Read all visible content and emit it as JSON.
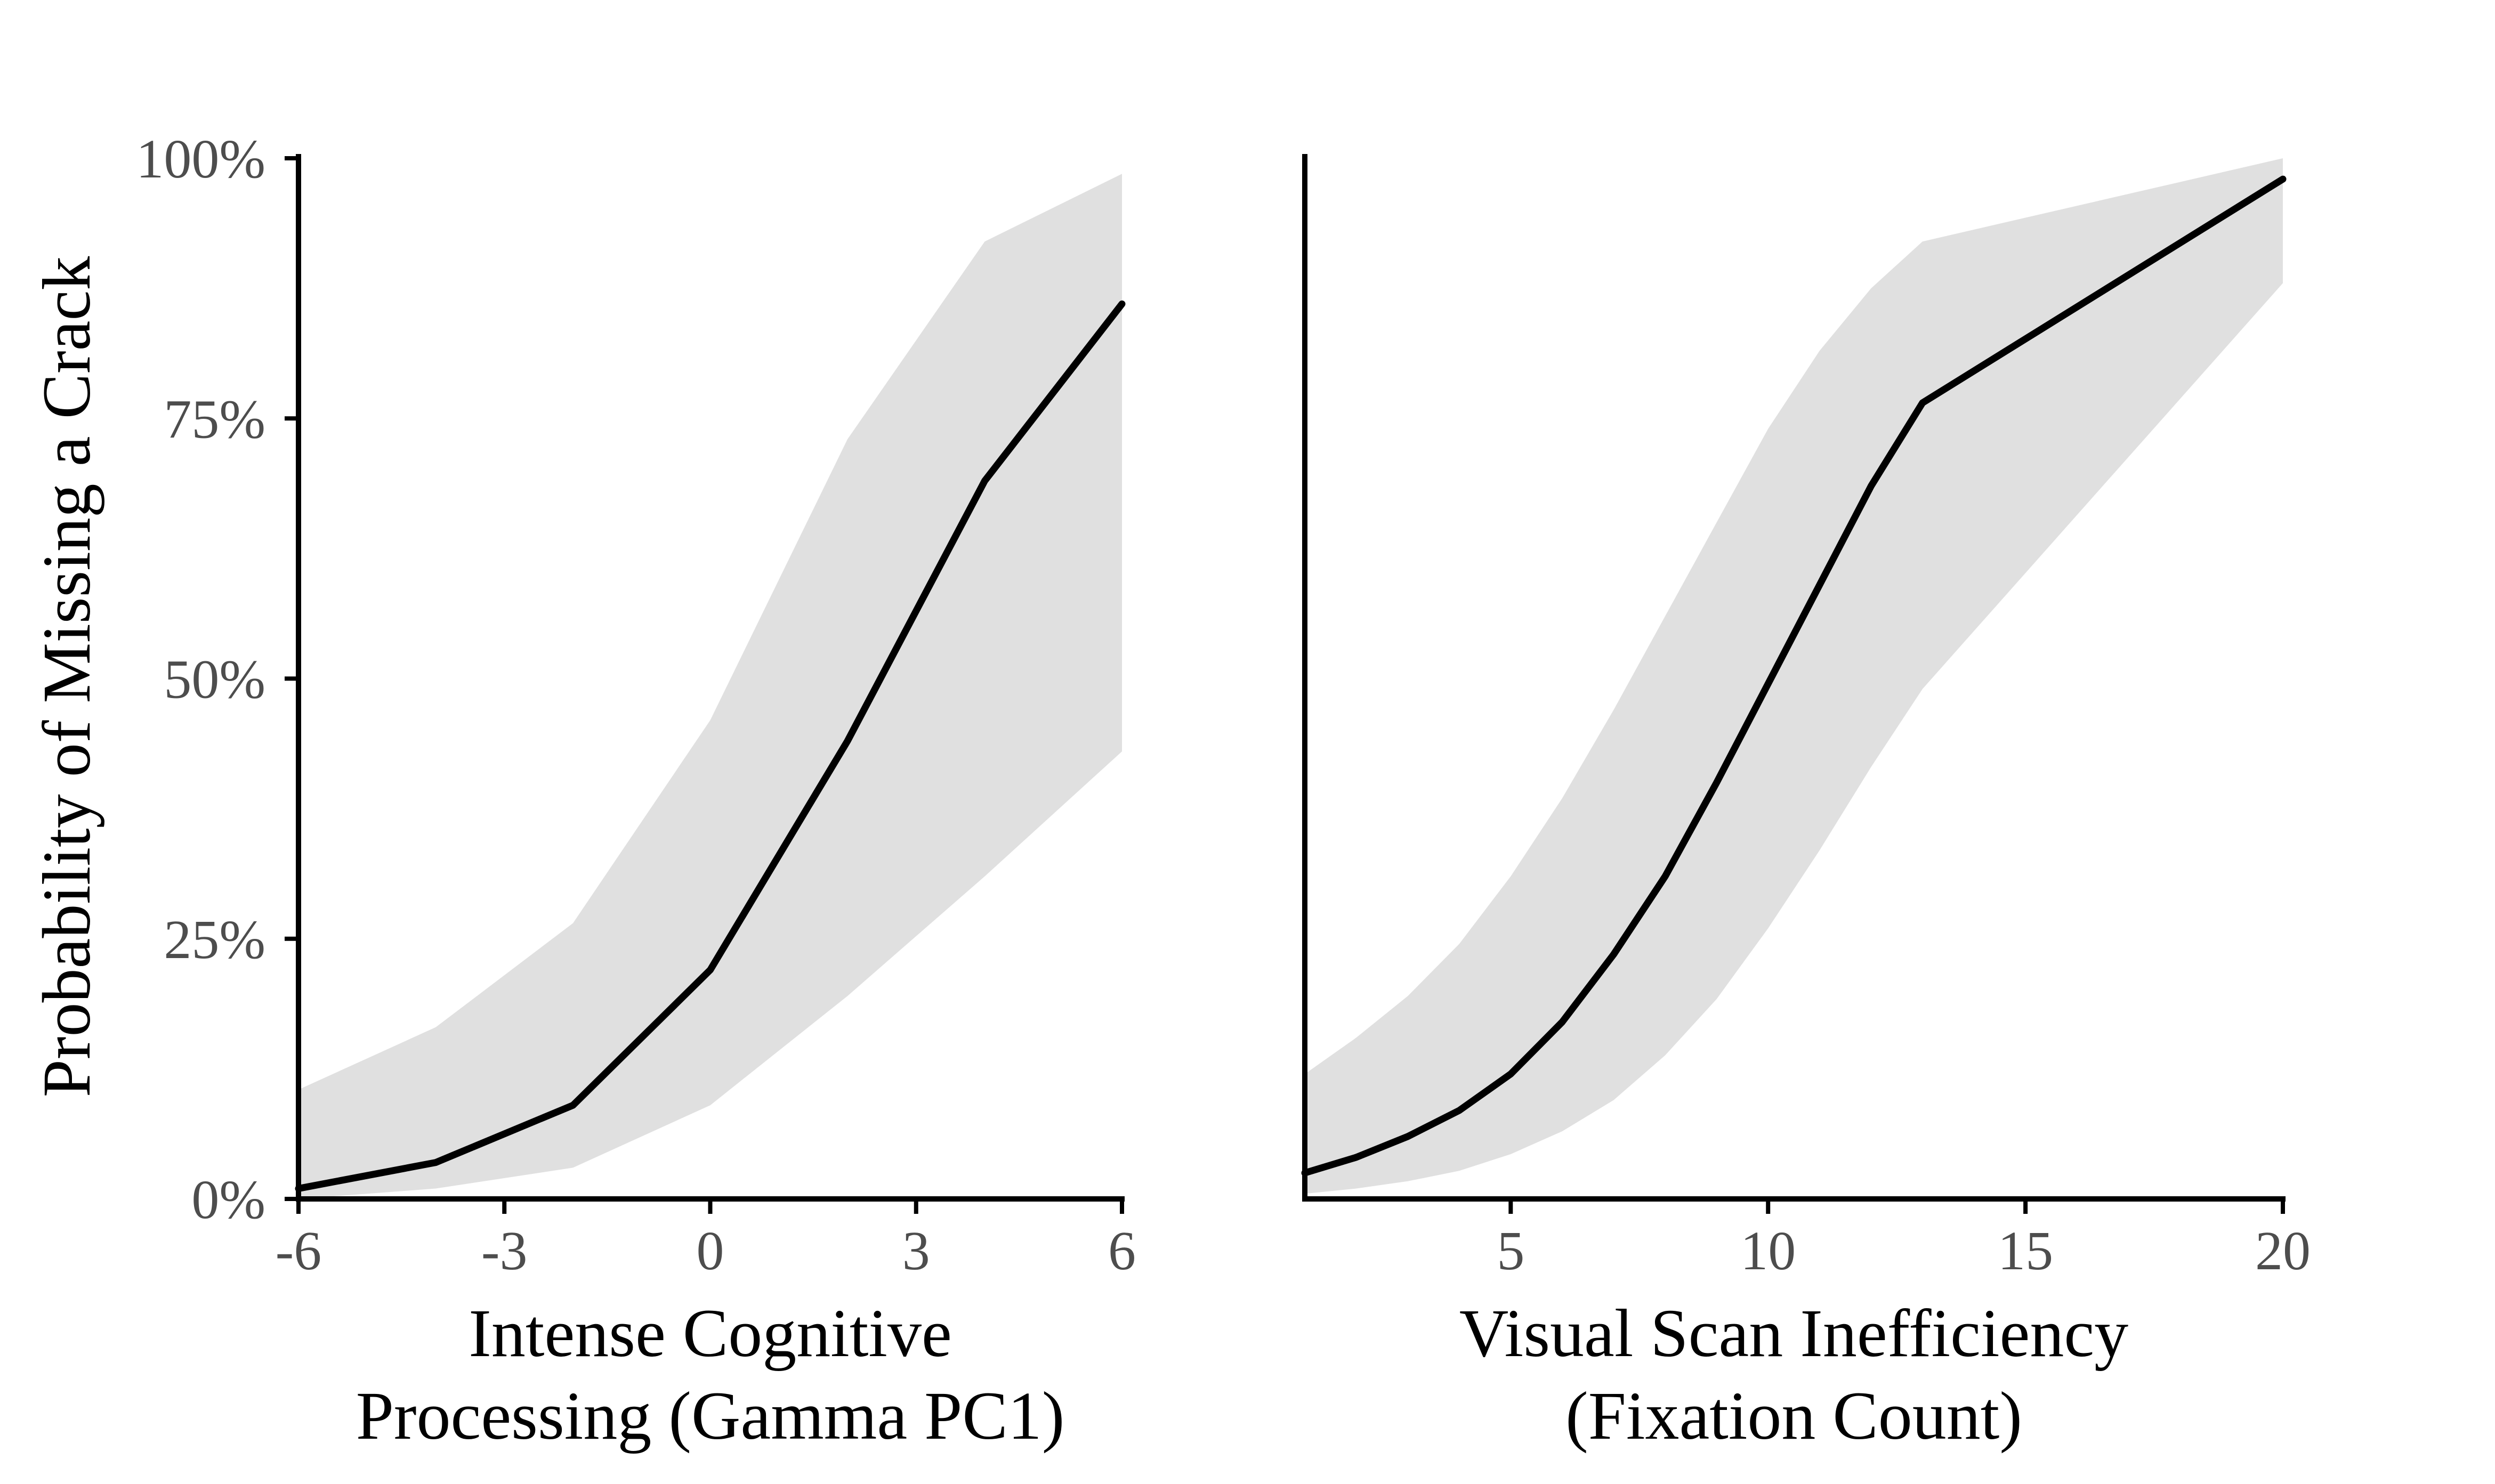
{
  "ylabel": "Probability of Missing a Crack",
  "colors": {
    "ribbon": "#e0e0e0",
    "line": "#000000",
    "tick_text": "#4d4d4d",
    "axis": "#000000"
  },
  "chart_data": [
    {
      "type": "line",
      "xlabel_lines": [
        "Intense Cognitive",
        "Processing (Gamma PC1)"
      ],
      "ylabel": "Probability of Missing a Crack",
      "xlim": [
        -6,
        6
      ],
      "ylim": [
        0,
        100
      ],
      "x_ticks": [
        -6,
        -3,
        0,
        3,
        6
      ],
      "x_tick_labels": [
        "-6",
        "-3",
        "0",
        "3",
        "6"
      ],
      "y_ticks": [
        0,
        25,
        50,
        75,
        100
      ],
      "y_tick_labels": [
        "0%",
        "25%",
        "50%",
        "75%",
        "100%"
      ],
      "grid": false,
      "series": [
        {
          "x": [
            -6,
            -4,
            -2,
            0,
            2,
            4,
            6
          ],
          "y": [
            1,
            3.5,
            9,
            22,
            44,
            69,
            86
          ],
          "lower": [
            0,
            1,
            3,
            9,
            19.5,
            31,
            43
          ],
          "upper": [
            10.5,
            16.5,
            26.5,
            46,
            73,
            92,
            98.5
          ]
        }
      ]
    },
    {
      "type": "line",
      "xlabel_lines": [
        "Visual Scan Inefficiency",
        "(Fixation Count)"
      ],
      "xlim": [
        1,
        20
      ],
      "ylim": [
        0,
        100
      ],
      "x_ticks": [
        5,
        10,
        15,
        20
      ],
      "x_tick_labels": [
        "5",
        "10",
        "15",
        "20"
      ],
      "y_ticks": [],
      "grid": false,
      "series": [
        {
          "x": [
            1,
            2,
            3,
            4,
            5,
            6,
            7,
            8,
            9,
            10,
            11,
            12,
            13,
            20
          ],
          "y": [
            2.5,
            4,
            6,
            8.5,
            12,
            17,
            23.5,
            31,
            40,
            49.5,
            59,
            68.5,
            76.5,
            98
          ],
          "lower": [
            0.5,
            1,
            1.7,
            2.7,
            4.3,
            6.5,
            9.5,
            13.8,
            19.2,
            26,
            33.5,
            41.5,
            49,
            88
          ],
          "upper": [
            12,
            15.5,
            19.5,
            24.5,
            31,
            38.5,
            47,
            56,
            65,
            74,
            81.5,
            87.5,
            92,
            100
          ]
        }
      ]
    }
  ]
}
